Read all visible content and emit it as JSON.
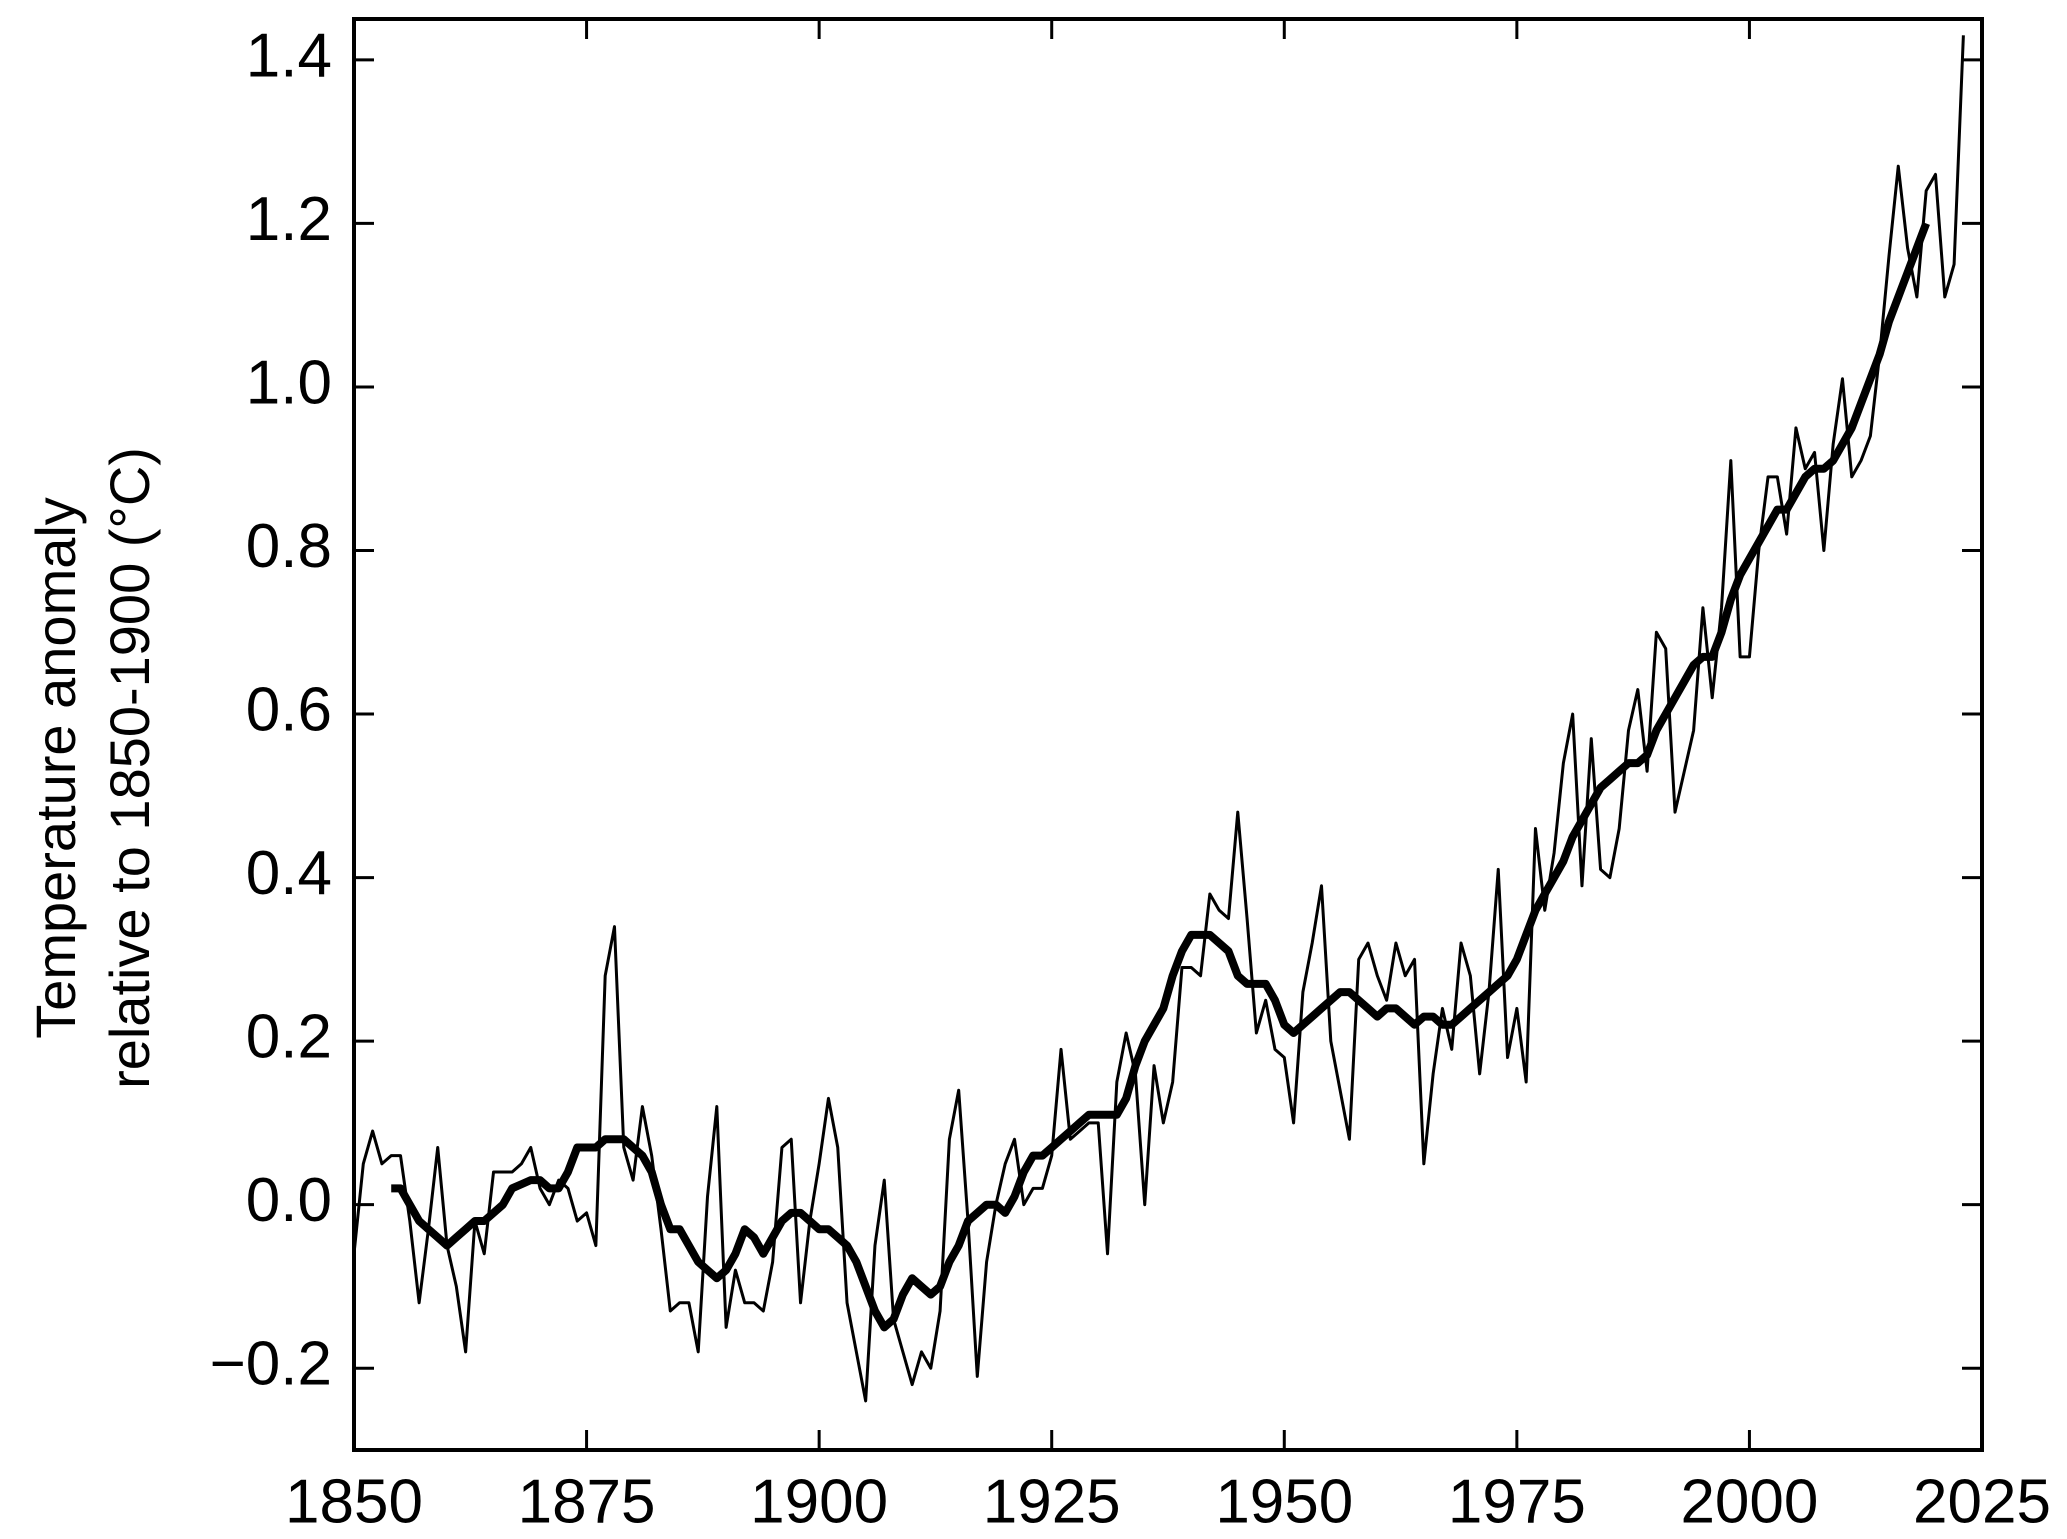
{
  "chart_data": {
    "type": "line",
    "ylabel": [
      "Temperature anomaly",
      "relative to 1850-1900 (°C)"
    ],
    "x": [
      1850,
      1851,
      1852,
      1853,
      1854,
      1855,
      1856,
      1857,
      1858,
      1859,
      1860,
      1861,
      1862,
      1863,
      1864,
      1865,
      1866,
      1867,
      1868,
      1869,
      1870,
      1871,
      1872,
      1873,
      1874,
      1875,
      1876,
      1877,
      1878,
      1879,
      1880,
      1881,
      1882,
      1883,
      1884,
      1885,
      1886,
      1887,
      1888,
      1889,
      1890,
      1891,
      1892,
      1893,
      1894,
      1895,
      1896,
      1897,
      1898,
      1899,
      1900,
      1901,
      1902,
      1903,
      1904,
      1905,
      1906,
      1907,
      1908,
      1909,
      1910,
      1911,
      1912,
      1913,
      1914,
      1915,
      1916,
      1917,
      1918,
      1919,
      1920,
      1921,
      1922,
      1923,
      1924,
      1925,
      1926,
      1927,
      1928,
      1929,
      1930,
      1931,
      1932,
      1933,
      1934,
      1935,
      1936,
      1937,
      1938,
      1939,
      1940,
      1941,
      1942,
      1943,
      1944,
      1945,
      1946,
      1947,
      1948,
      1949,
      1950,
      1951,
      1952,
      1953,
      1954,
      1955,
      1956,
      1957,
      1958,
      1959,
      1960,
      1961,
      1962,
      1963,
      1964,
      1965,
      1966,
      1967,
      1968,
      1969,
      1970,
      1971,
      1972,
      1973,
      1974,
      1975,
      1976,
      1977,
      1978,
      1979,
      1980,
      1981,
      1982,
      1983,
      1984,
      1985,
      1986,
      1987,
      1988,
      1989,
      1990,
      1991,
      1992,
      1993,
      1994,
      1995,
      1996,
      1997,
      1998,
      1999,
      2000,
      2001,
      2002,
      2003,
      2004,
      2005,
      2006,
      2007,
      2008,
      2009,
      2010,
      2011,
      2012,
      2013,
      2014,
      2015,
      2016,
      2017,
      2018,
      2019,
      2020,
      2021,
      2022,
      2023
    ],
    "series": [
      {
        "color": "#000000",
        "values": [
          -0.06,
          0.05,
          0.09,
          0.05,
          0.06,
          0.06,
          -0.02,
          -0.12,
          -0.03,
          0.07,
          -0.05,
          -0.1,
          -0.18,
          -0.02,
          -0.06,
          0.04,
          0.04,
          0.04,
          0.05,
          0.07,
          0.02,
          0.0,
          0.03,
          0.02,
          -0.02,
          -0.01,
          -0.05,
          0.28,
          0.34,
          0.07,
          0.03,
          0.12,
          0.06,
          -0.03,
          -0.13,
          -0.12,
          -0.12,
          -0.18,
          0.01,
          0.12,
          -0.15,
          -0.08,
          -0.12,
          -0.12,
          -0.13,
          -0.07,
          0.07,
          0.08,
          -0.12,
          -0.02,
          0.05,
          0.13,
          0.07,
          -0.12,
          -0.18,
          -0.24,
          -0.05,
          0.03,
          -0.14,
          -0.18,
          -0.22,
          -0.18,
          -0.2,
          -0.13,
          0.08,
          0.14,
          -0.02,
          -0.21,
          -0.07,
          0.0,
          0.05,
          0.08,
          0.0,
          0.02,
          0.02,
          0.06,
          0.19,
          0.08,
          0.09,
          0.1,
          0.1,
          -0.06,
          0.15,
          0.21,
          0.16,
          0.0,
          0.17,
          0.1,
          0.15,
          0.29,
          0.29,
          0.28,
          0.38,
          0.36,
          0.35,
          0.48,
          0.35,
          0.21,
          0.25,
          0.19,
          0.18,
          0.1,
          0.26,
          0.32,
          0.39,
          0.2,
          0.14,
          0.08,
          0.3,
          0.32,
          0.28,
          0.25,
          0.32,
          0.28,
          0.3,
          0.05,
          0.16,
          0.24,
          0.19,
          0.32,
          0.28,
          0.16,
          0.26,
          0.41,
          0.18,
          0.24,
          0.15,
          0.46,
          0.36,
          0.43,
          0.54,
          0.6,
          0.39,
          0.57,
          0.41,
          0.4,
          0.46,
          0.58,
          0.63,
          0.53,
          0.7,
          0.68,
          0.48,
          0.53,
          0.58,
          0.73,
          0.62,
          0.73,
          0.91,
          0.67,
          0.67,
          0.8,
          0.89,
          0.89,
          0.82,
          0.95,
          0.9,
          0.92,
          0.8,
          0.93,
          1.01,
          0.89,
          0.91,
          0.94,
          1.04,
          1.16,
          1.27,
          1.17,
          1.11,
          1.24,
          1.26,
          1.11,
          1.15,
          1.43
        ]
      },
      {
        "color": "#000000",
        "values": [
          null,
          null,
          null,
          null,
          0.02,
          0.02,
          0.0,
          -0.02,
          -0.03,
          -0.04,
          -0.05,
          -0.04,
          -0.03,
          -0.02,
          -0.02,
          -0.01,
          0.0,
          0.02,
          0.025,
          0.03,
          0.03,
          0.02,
          0.02,
          0.04,
          0.07,
          0.07,
          0.07,
          0.08,
          0.08,
          0.08,
          0.07,
          0.06,
          0.04,
          0.0,
          -0.03,
          -0.03,
          -0.05,
          -0.07,
          -0.08,
          -0.09,
          -0.08,
          -0.06,
          -0.03,
          -0.04,
          -0.06,
          -0.04,
          -0.02,
          -0.01,
          -0.01,
          -0.02,
          -0.03,
          -0.03,
          -0.04,
          -0.05,
          -0.07,
          -0.1,
          -0.13,
          -0.15,
          -0.14,
          -0.11,
          -0.09,
          -0.1,
          -0.11,
          -0.1,
          -0.07,
          -0.05,
          -0.02,
          -0.01,
          0.0,
          0.0,
          -0.01,
          0.01,
          0.04,
          0.06,
          0.06,
          0.07,
          0.08,
          0.09,
          0.1,
          0.11,
          0.11,
          0.11,
          0.11,
          0.13,
          0.17,
          0.2,
          0.22,
          0.24,
          0.28,
          0.31,
          0.33,
          0.33,
          0.33,
          0.32,
          0.31,
          0.28,
          0.27,
          0.27,
          0.27,
          0.25,
          0.22,
          0.21,
          0.22,
          0.23,
          0.24,
          0.25,
          0.26,
          0.26,
          0.25,
          0.24,
          0.23,
          0.24,
          0.24,
          0.23,
          0.22,
          0.23,
          0.23,
          0.22,
          0.22,
          0.23,
          0.24,
          0.25,
          0.26,
          0.27,
          0.28,
          0.3,
          0.33,
          0.36,
          0.38,
          0.4,
          0.42,
          0.45,
          0.47,
          0.49,
          0.51,
          0.52,
          0.53,
          0.54,
          0.54,
          0.55,
          0.58,
          0.6,
          0.62,
          0.64,
          0.66,
          0.67,
          0.67,
          0.7,
          0.74,
          0.77,
          0.79,
          0.81,
          0.83,
          0.85,
          0.85,
          0.87,
          0.89,
          0.9,
          0.9,
          0.91,
          0.93,
          0.95,
          0.98,
          1.01,
          1.04,
          1.08,
          1.11,
          1.14,
          1.17,
          1.2,
          null,
          null,
          null,
          null
        ]
      }
    ],
    "xlim": [
      1850,
      2025
    ],
    "xticks": [
      1850,
      1875,
      1900,
      1925,
      1950,
      1975,
      2000,
      2025
    ],
    "ylim": [
      -0.3,
      1.45
    ],
    "yticks": [
      {
        "value": -0.2,
        "label": "−0.2"
      },
      {
        "value": 0,
        "label": "0.0"
      },
      0.2,
      0.4,
      0.6,
      0.8,
      {
        "value": 1,
        "label": "1.0"
      },
      1.2,
      1.4
    ]
  }
}
